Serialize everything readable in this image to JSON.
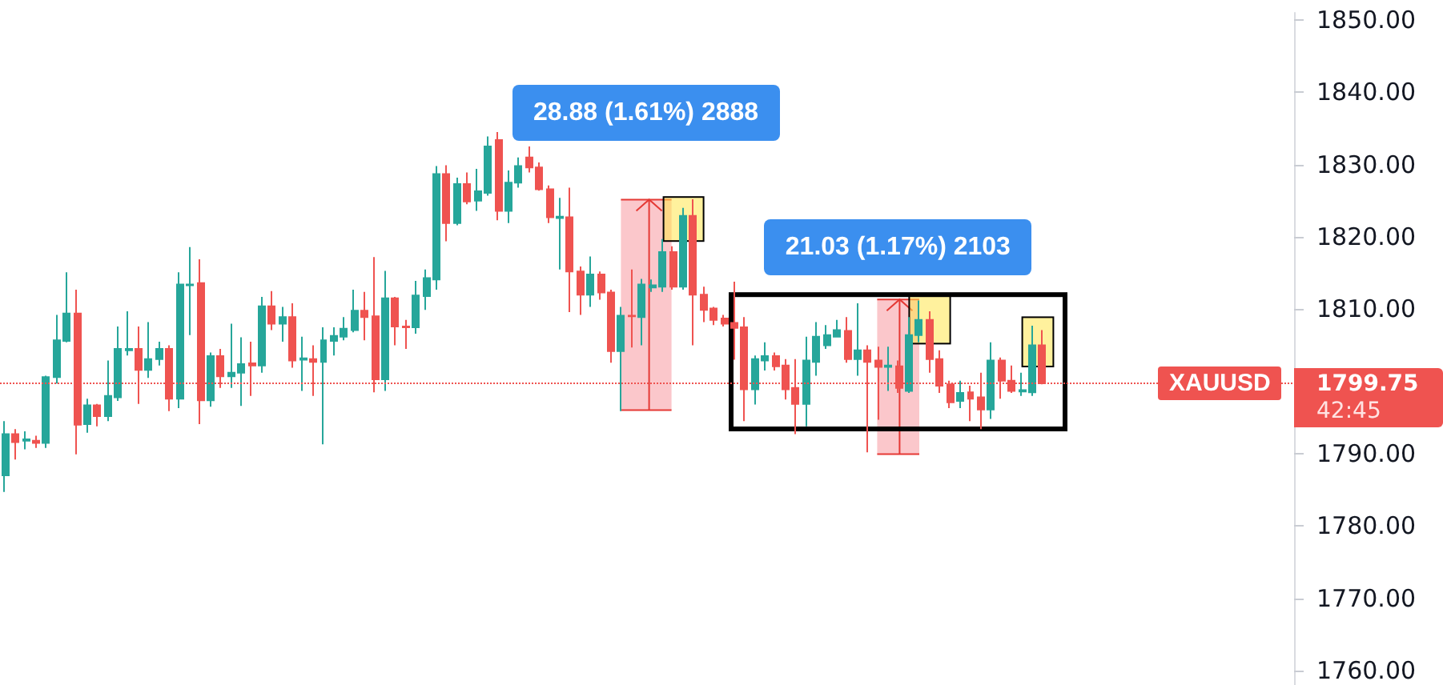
{
  "chart_data": {
    "type": "candlestick",
    "categories": [
      null,
      null,
      null,
      null,
      null,
      null,
      null,
      null,
      null,
      null,
      null,
      null,
      null,
      null,
      null,
      null,
      null,
      null,
      null,
      null,
      null,
      null,
      null,
      null,
      null,
      null,
      null,
      null,
      null,
      null,
      null,
      null,
      null,
      null,
      null,
      null,
      null,
      null,
      null,
      null,
      null,
      null,
      null,
      null,
      null,
      null,
      null,
      null,
      null,
      null,
      null,
      null,
      null,
      null,
      null,
      null,
      null,
      null,
      null,
      null,
      null,
      null,
      null,
      null,
      null,
      null,
      null,
      null,
      null,
      null,
      null,
      null,
      null,
      null,
      null,
      null,
      null,
      null,
      null,
      null,
      null,
      null,
      null,
      null,
      null,
      null,
      null,
      null,
      null,
      null,
      null,
      null,
      null,
      null,
      null,
      null,
      null,
      null,
      null,
      null,
      null,
      null,
      null,
      null,
      null,
      null,
      null,
      null,
      null,
      null,
      null,
      null,
      null,
      null,
      null,
      null,
      null,
      null,
      null,
      null,
      null,
      null,
      null,
      null,
      null,
      null
    ],
    "ohlc": [
      [
        1787.0,
        1794.5,
        1784.7,
        1792.7
      ],
      [
        1792.7,
        1793.4,
        1789.2,
        1791.6
      ],
      [
        1791.8,
        1793.1,
        1790.6,
        1792.0
      ],
      [
        1791.8,
        1792.5,
        1790.8,
        1791.5
      ],
      [
        1791.5,
        1800.8,
        1790.8,
        1800.6
      ],
      [
        1800.6,
        1809.2,
        1799.7,
        1805.7
      ],
      [
        1805.6,
        1815.1,
        1805.4,
        1809.4
      ],
      [
        1809.4,
        1812.7,
        1789.9,
        1794.0
      ],
      [
        1794.1,
        1797.6,
        1792.9,
        1796.7
      ],
      [
        1796.7,
        1796.9,
        1793.8,
        1795.2
      ],
      [
        1795.2,
        1802.9,
        1794.5,
        1798.0
      ],
      [
        1797.8,
        1807.6,
        1797.3,
        1804.5
      ],
      [
        1804.3,
        1809.7,
        1803.6,
        1804.5
      ],
      [
        1804.5,
        1807.6,
        1796.9,
        1801.6
      ],
      [
        1801.6,
        1808.2,
        1800.5,
        1803.1
      ],
      [
        1803.1,
        1805.5,
        1802.2,
        1804.5
      ],
      [
        1804.5,
        1805.0,
        1795.9,
        1797.6
      ],
      [
        1797.6,
        1815.1,
        1796.3,
        1813.4
      ],
      [
        1813.3,
        1818.6,
        1806.4,
        1813.4
      ],
      [
        1813.6,
        1816.9,
        1794.1,
        1797.4
      ],
      [
        1797.4,
        1804.0,
        1796.5,
        1803.5
      ],
      [
        1803.5,
        1804.5,
        1799.1,
        1800.7
      ],
      [
        1800.7,
        1808.0,
        1799.1,
        1801.2
      ],
      [
        1801.2,
        1806.1,
        1796.6,
        1802.4
      ],
      [
        1802.5,
        1805.5,
        1798.0,
        1802.2
      ],
      [
        1802.2,
        1811.7,
        1801.2,
        1810.4
      ],
      [
        1810.4,
        1812.5,
        1807.1,
        1808.0
      ],
      [
        1808.0,
        1810.3,
        1805.5,
        1808.9
      ],
      [
        1808.9,
        1810.8,
        1801.9,
        1802.9
      ],
      [
        1803.0,
        1806.2,
        1798.7,
        1803.2
      ],
      [
        1803.1,
        1805.0,
        1798.0,
        1802.7
      ],
      [
        1802.7,
        1807.5,
        1791.3,
        1805.7
      ],
      [
        1805.6,
        1807.5,
        1803.6,
        1806.3
      ],
      [
        1806.2,
        1808.9,
        1805.7,
        1807.3
      ],
      [
        1807.1,
        1812.7,
        1806.8,
        1809.8
      ],
      [
        1809.8,
        1812.4,
        1805.7,
        1808.9
      ],
      [
        1809.0,
        1817.2,
        1798.5,
        1800.3
      ],
      [
        1800.3,
        1815.3,
        1798.7,
        1811.5
      ],
      [
        1811.5,
        1811.7,
        1805.0,
        1807.6
      ],
      [
        1807.6,
        1808.5,
        1804.5,
        1807.5
      ],
      [
        1807.5,
        1813.9,
        1806.6,
        1811.9
      ],
      [
        1811.8,
        1815.5,
        1809.9,
        1814.3
      ],
      [
        1814.1,
        1829.8,
        1812.7,
        1828.7
      ],
      [
        1828.7,
        1829.9,
        1819.4,
        1821.9
      ],
      [
        1821.9,
        1828.2,
        1821.6,
        1827.3
      ],
      [
        1827.3,
        1828.9,
        1824.5,
        1824.9
      ],
      [
        1825.0,
        1829.4,
        1823.6,
        1826.3
      ],
      [
        1826.1,
        1833.9,
        1825.7,
        1832.5
      ],
      [
        1833.4,
        1834.5,
        1822.3,
        1823.6
      ],
      [
        1823.6,
        1829.2,
        1821.9,
        1827.5
      ],
      [
        1827.5,
        1831.0,
        1826.8,
        1829.8
      ],
      [
        1831.0,
        1832.5,
        1828.9,
        1829.6
      ],
      [
        1829.6,
        1830.3,
        1826.4,
        1826.6
      ],
      [
        1826.6,
        1827.1,
        1821.9,
        1822.7
      ],
      [
        1822.6,
        1825.4,
        1815.5,
        1822.8
      ],
      [
        1822.7,
        1826.8,
        1809.6,
        1815.2
      ],
      [
        1815.2,
        1815.9,
        1809.2,
        1812.0
      ],
      [
        1812.0,
        1817.3,
        1810.3,
        1814.8
      ],
      [
        1814.8,
        1815.2,
        1811.3,
        1812.3
      ],
      [
        1812.3,
        1812.7,
        1802.6,
        1804.2
      ],
      [
        1804.2,
        1810.3,
        1795.9,
        1809.1
      ],
      [
        1809.1,
        1815.5,
        1804.7,
        1809.0
      ],
      [
        1808.9,
        1814.2,
        1805.0,
        1813.4
      ],
      [
        1813.0,
        1814.1,
        1812.4,
        1813.3
      ],
      [
        1813.1,
        1819.7,
        1812.4,
        1817.9
      ],
      [
        1817.9,
        1818.7,
        1812.7,
        1813.1
      ],
      [
        1813.1,
        1824.0,
        1812.7,
        1822.9
      ],
      [
        1822.9,
        1825.2,
        1805.0,
        1812.0
      ],
      [
        1812.0,
        1813.1,
        1808.2,
        1809.9
      ],
      [
        1810.1,
        1810.3,
        1807.8,
        1808.5
      ],
      [
        1808.7,
        1809.2,
        1807.6,
        1808.0
      ],
      [
        1808.1,
        1813.8,
        1803.0,
        1807.4
      ],
      [
        1807.5,
        1808.9,
        1794.5,
        1798.9
      ],
      [
        1798.9,
        1803.6,
        1796.8,
        1803.1
      ],
      [
        1802.9,
        1805.4,
        1801.5,
        1803.5
      ],
      [
        1803.5,
        1804.0,
        1801.5,
        1802.1
      ],
      [
        1802.2,
        1803.1,
        1797.5,
        1798.9
      ],
      [
        1799.1,
        1803.1,
        1792.7,
        1796.9
      ],
      [
        1796.9,
        1806.2,
        1793.8,
        1802.9
      ],
      [
        1802.7,
        1808.2,
        1800.8,
        1806.2
      ],
      [
        1805.0,
        1807.8,
        1804.5,
        1806.4
      ],
      [
        1806.2,
        1808.5,
        1806.1,
        1807.1
      ],
      [
        1807.0,
        1808.9,
        1802.6,
        1803.1
      ],
      [
        1803.1,
        1810.8,
        1800.8,
        1804.3
      ],
      [
        1804.3,
        1805.0,
        1790.2,
        1802.7
      ],
      [
        1802.9,
        1804.8,
        1794.7,
        1802.0
      ],
      [
        1802.0,
        1804.8,
        1798.7,
        1802.2
      ],
      [
        1802.1,
        1802.9,
        1798.4,
        1799.1
      ],
      [
        1798.7,
        1808.9,
        1798.4,
        1806.4
      ],
      [
        1806.4,
        1811.2,
        1805.4,
        1808.5
      ],
      [
        1808.5,
        1809.7,
        1801.2,
        1803.1
      ],
      [
        1803.1,
        1804.3,
        1798.4,
        1799.4
      ],
      [
        1799.6,
        1800.1,
        1796.3,
        1797.1
      ],
      [
        1797.3,
        1800.1,
        1796.3,
        1798.4
      ],
      [
        1798.5,
        1799.4,
        1794.5,
        1797.6
      ],
      [
        1797.8,
        1801.2,
        1793.4,
        1796.1
      ],
      [
        1796.1,
        1805.4,
        1794.8,
        1802.9
      ],
      [
        1802.9,
        1803.3,
        1797.6,
        1800.1
      ],
      [
        1800.1,
        1802.2,
        1798.4,
        1798.7
      ],
      [
        1798.6,
        1801.2,
        1798.0,
        1798.8
      ],
      [
        1798.5,
        1807.7,
        1798.0,
        1805.0
      ],
      [
        1805.0,
        1807.1,
        1799.6,
        1799.75
      ],
      null,
      null,
      null,
      null,
      null,
      null,
      null,
      null,
      null,
      null,
      null,
      null,
      null,
      null,
      null,
      null,
      null,
      null,
      null,
      null,
      null,
      null,
      null,
      null
    ],
    "colors": [
      "#26a69a",
      "#ef5350",
      "#26a69a",
      "#ef5350",
      "#26a69a",
      "#26a69a",
      "#26a69a",
      "#ef5350",
      "#26a69a",
      "#ef5350",
      "#26a69a",
      "#26a69a",
      "#26a69a",
      "#ef5350",
      "#26a69a",
      "#26a69a",
      "#ef5350",
      "#26a69a",
      "#26a69a",
      "#ef5350",
      "#26a69a",
      "#ef5350",
      "#26a69a",
      "#26a69a",
      "#ef5350",
      "#26a69a",
      "#ef5350",
      "#26a69a",
      "#ef5350",
      "#26a69a",
      "#ef5350",
      "#26a69a",
      "#26a69a",
      "#26a69a",
      "#26a69a",
      "#ef5350",
      "#ef5350",
      "#26a69a",
      "#ef5350",
      "#ef5350",
      "#26a69a",
      "#26a69a",
      "#26a69a",
      "#ef5350",
      "#26a69a",
      "#ef5350",
      "#26a69a",
      "#26a69a",
      "#ef5350",
      "#26a69a",
      "#26a69a",
      "#ef5350",
      "#ef5350",
      "#ef5350",
      "#26a69a",
      "#ef5350",
      "#ef5350",
      "#26a69a",
      "#ef5350",
      "#ef5350",
      "#26a69a",
      "#ef5350",
      "#26a69a",
      "#26a69a",
      "#26a69a",
      "#ef5350",
      "#26a69a",
      "#ef5350",
      "#ef5350",
      "#ef5350",
      "#ef5350",
      "#ef5350",
      "#ef5350",
      "#26a69a",
      "#26a69a",
      "#ef5350",
      "#ef5350",
      "#ef5350",
      "#26a69a",
      "#26a69a",
      "#26a69a",
      "#26a69a",
      "#ef5350",
      "#26a69a",
      "#ef5350",
      "#ef5350",
      "#26a69a",
      "#ef5350",
      "#26a69a",
      "#26a69a",
      "#ef5350",
      "#ef5350",
      "#ef5350",
      "#26a69a",
      "#ef5350",
      "#ef5350",
      "#26a69a",
      "#ef5350",
      "#ef5350",
      "#26a69a",
      "#26a69a",
      "#ef5350",
      null,
      null,
      null,
      null,
      null,
      null,
      null,
      null,
      null,
      null,
      null,
      null,
      null,
      null,
      null,
      null,
      null,
      null,
      null,
      null,
      null,
      null,
      null,
      null
    ],
    "ylim": [
      1758,
      1851
    ],
    "yticks": [
      {
        "value": 1760,
        "label": "1760.00"
      },
      {
        "value": 1770,
        "label": "1770.00"
      },
      {
        "value": 1780,
        "label": "1780.00"
      },
      {
        "value": 1790,
        "label": "1790.00"
      },
      {
        "value": 1800,
        "label": null
      },
      {
        "value": 1810,
        "label": "1810.00"
      },
      {
        "value": 1820,
        "label": "1820.00"
      },
      {
        "value": 1830,
        "label": "1830.00"
      },
      {
        "value": 1840,
        "label": "1840.00"
      },
      {
        "value": 1850,
        "label": "1850.00"
      }
    ],
    "grid": false,
    "tick_labels": "y",
    "ref_lines": [
      {
        "axis": "y",
        "value": 1799.75,
        "label": "XAUUSD",
        "color": "#ef5350",
        "line_style": "dotted"
      }
    ],
    "annotations": [
      "28.88 (1.61%) 2888",
      "21.03 (1.17%) 2103",
      "1799.75",
      "42:45"
    ]
  }
}
